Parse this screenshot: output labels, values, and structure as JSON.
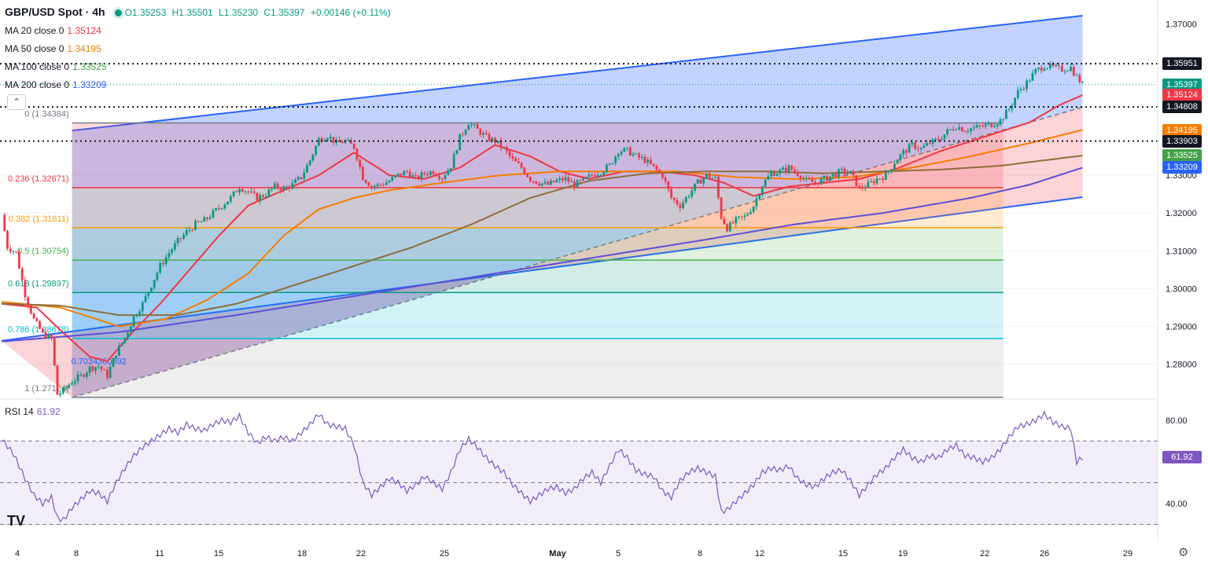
{
  "header": {
    "symbol": "GBP/USD Spot · 4h",
    "open": "O1.35253",
    "high": "H1.35501",
    "low": "L1.35230",
    "close": "C1.35397",
    "change": "+0.00146 (+0.11%)"
  },
  "indicators": [
    {
      "label": "MA 20 close 0",
      "value": "1.35124",
      "color": "#f23645"
    },
    {
      "label": "MA 50 close 0",
      "value": "1.34195",
      "color": "#f57c00"
    },
    {
      "label": "MA 100 close 0",
      "value": "1.33525",
      "color": "#43a047"
    },
    {
      "label": "MA 200 close 0",
      "value": "1.33209",
      "color": "#2962ff"
    }
  ],
  "price_tags": [
    {
      "value": "1.35951",
      "bg": "#131722"
    },
    {
      "value": "1.35397",
      "bg": "#089981"
    },
    {
      "value": "1.35124",
      "bg": "#f23645"
    },
    {
      "value": "1.34808",
      "bg": "#131722"
    },
    {
      "value": "1.34195",
      "bg": "#f57c00"
    },
    {
      "value": "1.33903",
      "bg": "#131722"
    },
    {
      "value": "1.33525",
      "bg": "#43a047"
    },
    {
      "value": "1.33209",
      "bg": "#2962ff"
    }
  ],
  "rsi": {
    "label": "RSI 14",
    "value": "61.92",
    "tag": "61.92",
    "levels": [
      70,
      50,
      30
    ]
  },
  "fib_labels": {
    "f0": "0 (1.34384)",
    "f236": "0.236 (1.32671)",
    "f382": "0.382 (1.31611)",
    "f5": "0.5 (1.30754)",
    "f618": "0.618 (1.29897)",
    "f786": "0.786 (1.28678)",
    "f703": "0.7034360592",
    "f1": "1 (1.27124)"
  },
  "colors": {
    "up": "#089981",
    "down": "#f23645"
  },
  "chart_data": {
    "type": "candlestick",
    "title": "GBP/USD Spot · 4h",
    "price_ylim": [
      1.2712,
      1.3722
    ],
    "y_ticks": [
      1.28,
      1.29,
      1.3,
      1.31,
      1.32,
      1.33,
      1.37
    ],
    "y_tick_labels": [
      "1.28000",
      "1.29000",
      "1.30000",
      "1.31000",
      "1.32000",
      "1.33000",
      "1.37000"
    ],
    "x_tick_labels": [
      "4",
      "8",
      "11",
      "15",
      "18",
      "22",
      "25",
      "May",
      "5",
      "8",
      "12",
      "15",
      "19",
      "22",
      "26",
      "29"
    ],
    "close_path": [
      [
        0,
        1.3195
      ],
      [
        2,
        1.311
      ],
      [
        5,
        1.3095
      ],
      [
        8,
        1.2985
      ],
      [
        11,
        1.2918
      ],
      [
        14,
        1.288
      ],
      [
        17,
        1.2868
      ],
      [
        19,
        1.272
      ],
      [
        21,
        1.273
      ],
      [
        24,
        1.2755
      ],
      [
        27,
        1.2768
      ],
      [
        30,
        1.279
      ],
      [
        33,
        1.2795
      ],
      [
        36,
        1.277
      ],
      [
        39,
        1.283
      ],
      [
        42,
        1.287
      ],
      [
        45,
        1.2925
      ],
      [
        48,
        1.296
      ],
      [
        51,
        1.301
      ],
      [
        54,
        1.306
      ],
      [
        57,
        1.3095
      ],
      [
        60,
        1.3125
      ],
      [
        63,
        1.315
      ],
      [
        66,
        1.317
      ],
      [
        69,
        1.318
      ],
      [
        72,
        1.32
      ],
      [
        75,
        1.322
      ],
      [
        78,
        1.324
      ],
      [
        81,
        1.327
      ],
      [
        84,
        1.3255
      ],
      [
        87,
        1.324
      ],
      [
        90,
        1.325
      ],
      [
        93,
        1.327
      ],
      [
        96,
        1.3265
      ],
      [
        99,
        1.3275
      ],
      [
        102,
        1.3295
      ],
      [
        105,
        1.334
      ],
      [
        108,
        1.3395
      ],
      [
        111,
        1.3405
      ],
      [
        114,
        1.3385
      ],
      [
        117,
        1.339
      ],
      [
        120,
        1.3375
      ],
      [
        123,
        1.3295
      ],
      [
        126,
        1.327
      ],
      [
        129,
        1.3275
      ],
      [
        132,
        1.3285
      ],
      [
        135,
        1.33
      ],
      [
        138,
        1.331
      ],
      [
        141,
        1.329
      ],
      [
        144,
        1.3305
      ],
      [
        147,
        1.331
      ],
      [
        150,
        1.3295
      ],
      [
        153,
        1.3325
      ],
      [
        156,
        1.34
      ],
      [
        159,
        1.344
      ],
      [
        162,
        1.342
      ],
      [
        165,
        1.34
      ],
      [
        168,
        1.339
      ],
      [
        171,
        1.337
      ],
      [
        174,
        1.334
      ],
      [
        177,
        1.332
      ],
      [
        180,
        1.329
      ],
      [
        183,
        1.328
      ],
      [
        186,
        1.3275
      ],
      [
        189,
        1.3285
      ],
      [
        192,
        1.329
      ],
      [
        195,
        1.3275
      ],
      [
        198,
        1.3285
      ],
      [
        201,
        1.33
      ],
      [
        204,
        1.331
      ],
      [
        207,
        1.3325
      ],
      [
        210,
        1.3365
      ],
      [
        213,
        1.3365
      ],
      [
        216,
        1.335
      ],
      [
        219,
        1.334
      ],
      [
        222,
        1.332
      ],
      [
        225,
        1.33
      ],
      [
        228,
        1.324
      ],
      [
        231,
        1.322
      ],
      [
        234,
        1.325
      ],
      [
        237,
        1.328
      ],
      [
        240,
        1.33
      ],
      [
        243,
        1.329
      ],
      [
        245,
        1.319
      ],
      [
        247,
        1.316
      ],
      [
        250,
        1.318
      ],
      [
        253,
        1.319
      ],
      [
        256,
        1.322
      ],
      [
        259,
        1.3275
      ],
      [
        262,
        1.3305
      ],
      [
        265,
        1.331
      ],
      [
        268,
        1.332
      ],
      [
        271,
        1.3305
      ],
      [
        274,
        1.3285
      ],
      [
        277,
        1.328
      ],
      [
        280,
        1.329
      ],
      [
        283,
        1.33
      ],
      [
        286,
        1.331
      ],
      [
        289,
        1.3305
      ],
      [
        292,
        1.3265
      ],
      [
        295,
        1.3275
      ],
      [
        298,
        1.329
      ],
      [
        301,
        1.33
      ],
      [
        304,
        1.3335
      ],
      [
        307,
        1.336
      ],
      [
        310,
        1.338
      ],
      [
        313,
        1.337
      ],
      [
        316,
        1.3385
      ],
      [
        319,
        1.3395
      ],
      [
        322,
        1.3415
      ],
      [
        325,
        1.343
      ],
      [
        328,
        1.342
      ],
      [
        331,
        1.3425
      ],
      [
        334,
        1.343
      ],
      [
        337,
        1.3435
      ],
      [
        340,
        1.3445
      ],
      [
        343,
        1.3475
      ],
      [
        346,
        1.352
      ],
      [
        349,
        1.3545
      ],
      [
        352,
        1.3575
      ],
      [
        355,
        1.359
      ],
      [
        358,
        1.3585
      ],
      [
        361,
        1.358
      ],
      [
        364,
        1.3585
      ],
      [
        366,
        1.356
      ],
      [
        368,
        1.354
      ]
    ],
    "rsi_ylim": [
      30,
      85
    ],
    "rsi_ticks": [
      80,
      40
    ],
    "rsi_path": [
      [
        0,
        71
      ],
      [
        4,
        64
      ],
      [
        8,
        52
      ],
      [
        11,
        44
      ],
      [
        14,
        40
      ],
      [
        17,
        43
      ],
      [
        19,
        33
      ],
      [
        21,
        32
      ],
      [
        24,
        38
      ],
      [
        27,
        42
      ],
      [
        30,
        46
      ],
      [
        33,
        45
      ],
      [
        36,
        41
      ],
      [
        39,
        50
      ],
      [
        42,
        57
      ],
      [
        45,
        63
      ],
      [
        48,
        67
      ],
      [
        51,
        70
      ],
      [
        54,
        73
      ],
      [
        57,
        76
      ],
      [
        60,
        74
      ],
      [
        63,
        78
      ],
      [
        66,
        76
      ],
      [
        69,
        75
      ],
      [
        72,
        78
      ],
      [
        75,
        80
      ],
      [
        78,
        79
      ],
      [
        81,
        82
      ],
      [
        84,
        74
      ],
      [
        87,
        69
      ],
      [
        90,
        72
      ],
      [
        93,
        70
      ],
      [
        96,
        72
      ],
      [
        99,
        70
      ],
      [
        102,
        74
      ],
      [
        105,
        78
      ],
      [
        108,
        83
      ],
      [
        111,
        78
      ],
      [
        114,
        77
      ],
      [
        117,
        76
      ],
      [
        120,
        68
      ],
      [
        123,
        50
      ],
      [
        126,
        44
      ],
      [
        129,
        48
      ],
      [
        132,
        52
      ],
      [
        135,
        50
      ],
      [
        138,
        46
      ],
      [
        141,
        49
      ],
      [
        144,
        53
      ],
      [
        147,
        50
      ],
      [
        150,
        47
      ],
      [
        153,
        55
      ],
      [
        156,
        66
      ],
      [
        159,
        71
      ],
      [
        162,
        67
      ],
      [
        165,
        62
      ],
      [
        168,
        58
      ],
      [
        171,
        55
      ],
      [
        174,
        49
      ],
      [
        177,
        45
      ],
      [
        180,
        41
      ],
      [
        183,
        44
      ],
      [
        186,
        47
      ],
      [
        189,
        48
      ],
      [
        192,
        45
      ],
      [
        195,
        47
      ],
      [
        198,
        52
      ],
      [
        201,
        55
      ],
      [
        204,
        50
      ],
      [
        207,
        58
      ],
      [
        210,
        66
      ],
      [
        213,
        62
      ],
      [
        216,
        56
      ],
      [
        219,
        54
      ],
      [
        222,
        53
      ],
      [
        225,
        46
      ],
      [
        228,
        43
      ],
      [
        231,
        51
      ],
      [
        234,
        55
      ],
      [
        237,
        57
      ],
      [
        240,
        55
      ],
      [
        243,
        53
      ],
      [
        245,
        36
      ],
      [
        247,
        37
      ],
      [
        250,
        41
      ],
      [
        253,
        45
      ],
      [
        256,
        49
      ],
      [
        259,
        55
      ],
      [
        262,
        57
      ],
      [
        265,
        56
      ],
      [
        268,
        58
      ],
      [
        271,
        52
      ],
      [
        274,
        49
      ],
      [
        277,
        48
      ],
      [
        280,
        52
      ],
      [
        283,
        55
      ],
      [
        286,
        56
      ],
      [
        289,
        51
      ],
      [
        292,
        44
      ],
      [
        295,
        49
      ],
      [
        298,
        54
      ],
      [
        301,
        57
      ],
      [
        304,
        62
      ],
      [
        307,
        66
      ],
      [
        310,
        62
      ],
      [
        313,
        60
      ],
      [
        316,
        63
      ],
      [
        319,
        62
      ],
      [
        322,
        66
      ],
      [
        325,
        68
      ],
      [
        328,
        63
      ],
      [
        331,
        62
      ],
      [
        334,
        60
      ],
      [
        337,
        62
      ],
      [
        340,
        66
      ],
      [
        343,
        72
      ],
      [
        346,
        77
      ],
      [
        349,
        78
      ],
      [
        352,
        80
      ],
      [
        355,
        83
      ],
      [
        358,
        79
      ],
      [
        361,
        77
      ],
      [
        364,
        76
      ],
      [
        366,
        60
      ],
      [
        368,
        62
      ]
    ],
    "ma_paths": {
      "ma20": [
        [
          0,
          1.296
        ],
        [
          12,
          1.295
        ],
        [
          20,
          1.289
        ],
        [
          30,
          1.282
        ],
        [
          36,
          1.2808
        ],
        [
          44,
          1.288
        ],
        [
          54,
          1.296
        ],
        [
          64,
          1.305
        ],
        [
          74,
          1.314
        ],
        [
          84,
          1.322
        ],
        [
          96,
          1.326
        ],
        [
          108,
          1.33
        ],
        [
          120,
          1.336
        ],
        [
          132,
          1.33
        ],
        [
          144,
          1.329
        ],
        [
          156,
          1.332
        ],
        [
          168,
          1.338
        ],
        [
          180,
          1.335
        ],
        [
          190,
          1.331
        ],
        [
          200,
          1.329
        ],
        [
          212,
          1.331
        ],
        [
          224,
          1.331
        ],
        [
          236,
          1.33
        ],
        [
          246,
          1.328
        ],
        [
          256,
          1.3245
        ],
        [
          268,
          1.327
        ],
        [
          280,
          1.328
        ],
        [
          292,
          1.329
        ],
        [
          304,
          1.3315
        ],
        [
          320,
          1.3365
        ],
        [
          336,
          1.3405
        ],
        [
          350,
          1.344
        ],
        [
          360,
          1.3485
        ],
        [
          368,
          1.3512
        ]
      ],
      "ma50": [
        [
          0,
          1.2965
        ],
        [
          20,
          1.295
        ],
        [
          40,
          1.29
        ],
        [
          56,
          1.292
        ],
        [
          70,
          1.297
        ],
        [
          84,
          1.304
        ],
        [
          96,
          1.314
        ],
        [
          108,
          1.321
        ],
        [
          120,
          1.324
        ],
        [
          132,
          1.326
        ],
        [
          150,
          1.328
        ],
        [
          170,
          1.33
        ],
        [
          190,
          1.331
        ],
        [
          210,
          1.331
        ],
        [
          230,
          1.331
        ],
        [
          250,
          1.3295
        ],
        [
          270,
          1.329
        ],
        [
          290,
          1.3295
        ],
        [
          310,
          1.332
        ],
        [
          330,
          1.335
        ],
        [
          350,
          1.3385
        ],
        [
          368,
          1.342
        ]
      ],
      "ma100": [
        [
          0,
          1.296
        ],
        [
          20,
          1.2955
        ],
        [
          40,
          1.293
        ],
        [
          60,
          1.293
        ],
        [
          80,
          1.296
        ],
        [
          100,
          1.301
        ],
        [
          120,
          1.306
        ],
        [
          140,
          1.311
        ],
        [
          160,
          1.317
        ],
        [
          180,
          1.324
        ],
        [
          200,
          1.3285
        ],
        [
          220,
          1.3305
        ],
        [
          240,
          1.331
        ],
        [
          260,
          1.331
        ],
        [
          280,
          1.3305
        ],
        [
          300,
          1.331
        ],
        [
          320,
          1.3315
        ],
        [
          340,
          1.3325
        ],
        [
          368,
          1.3352
        ]
      ],
      "ma200": [
        [
          0,
          1.286
        ],
        [
          40,
          1.2885
        ],
        [
          80,
          1.293
        ],
        [
          120,
          1.298
        ],
        [
          160,
          1.303
        ],
        [
          200,
          1.308
        ],
        [
          240,
          1.313
        ],
        [
          270,
          1.317
        ],
        [
          300,
          1.32
        ],
        [
          330,
          1.324
        ],
        [
          350,
          1.3275
        ],
        [
          368,
          1.332
        ]
      ]
    },
    "fib_levels": [
      {
        "ratio": "0",
        "price": 1.34384
      },
      {
        "ratio": "0.236",
        "price": 1.32671
      },
      {
        "ratio": "0.382",
        "price": 1.31611
      },
      {
        "ratio": "0.5",
        "price": 1.30754
      },
      {
        "ratio": "0.618",
        "price": 1.29897
      },
      {
        "ratio": "0.786",
        "price": 1.28678
      },
      {
        "ratio": "1",
        "price": 1.27124
      }
    ],
    "horizontal_levels": [
      1.35951,
      1.34808,
      1.33903
    ],
    "legend": "top-left"
  }
}
